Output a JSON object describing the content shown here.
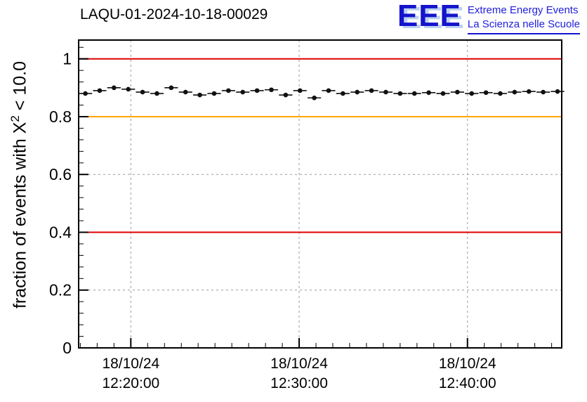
{
  "header": {
    "title": "LAQU-01-2024-10-18-00029",
    "logo": {
      "acronym": "EEE",
      "line1": "Extreme Energy Events",
      "line2": "La Scienza nelle Scuole"
    }
  },
  "axes": {
    "ylabel": {
      "prefix": "fraction of events with X",
      "sup": "2",
      "suffix": " < 10.0"
    }
  },
  "colors": {
    "logo_blue": "#1414cc",
    "logo_shadow": "#bcd2f0",
    "red_line": "#dd0000",
    "orange_line": "#ffa500",
    "grid": "#999999",
    "marker": "#111111"
  },
  "chart_data": {
    "type": "scatter",
    "title": "LAQU-01-2024-10-18-00029",
    "xlabel": "",
    "ylabel": "fraction of events with X^2 < 10.0",
    "x_minutes_after_12h": [
      17.3,
      18.15,
      19.0,
      19.85,
      20.7,
      21.55,
      22.4,
      23.25,
      24.1,
      24.95,
      25.8,
      26.65,
      27.5,
      28.35,
      29.2,
      30.05,
      30.9,
      31.75,
      32.6,
      33.45,
      34.3,
      35.15,
      36.0,
      36.85,
      37.7,
      38.55,
      39.4,
      40.25,
      41.1,
      41.95,
      42.8,
      43.65,
      44.5,
      45.35
    ],
    "values": [
      0.88,
      0.89,
      0.9,
      0.895,
      0.885,
      0.88,
      0.9,
      0.885,
      0.875,
      0.88,
      0.89,
      0.885,
      0.89,
      0.893,
      0.875,
      0.89,
      0.865,
      0.89,
      0.88,
      0.885,
      0.89,
      0.885,
      0.88,
      0.88,
      0.883,
      0.88,
      0.885,
      0.88,
      0.883,
      0.88,
      0.885,
      0.887,
      0.885,
      0.887
    ],
    "x_error_half_width_min": 0.4,
    "xlim": [
      16.9,
      45.6
    ],
    "ylim": [
      0,
      1.065
    ],
    "y_ticks": [
      0,
      0.2,
      0.4,
      0.6,
      0.8,
      1.0
    ],
    "y_tick_labels": [
      "0",
      "0.2",
      "0.4",
      "0.6",
      "0.8",
      "1"
    ],
    "y_minor_step": 0.04,
    "x_ticks": [
      20,
      30,
      40
    ],
    "x_tick_labels": [
      {
        "date": "18/10/24",
        "time": "12:20:00"
      },
      {
        "date": "18/10/24",
        "time": "12:30:00"
      },
      {
        "date": "18/10/24",
        "time": "12:40:00"
      }
    ],
    "x_minor_step": 1,
    "reference_lines": [
      {
        "y": 1.0,
        "color": "#dd0000"
      },
      {
        "y": 0.8,
        "color": "#ffa500"
      },
      {
        "y": 0.4,
        "color": "#dd0000"
      }
    ],
    "grid": true,
    "grid_style": "dashed",
    "legend": "none",
    "marker": "filled-circle"
  }
}
